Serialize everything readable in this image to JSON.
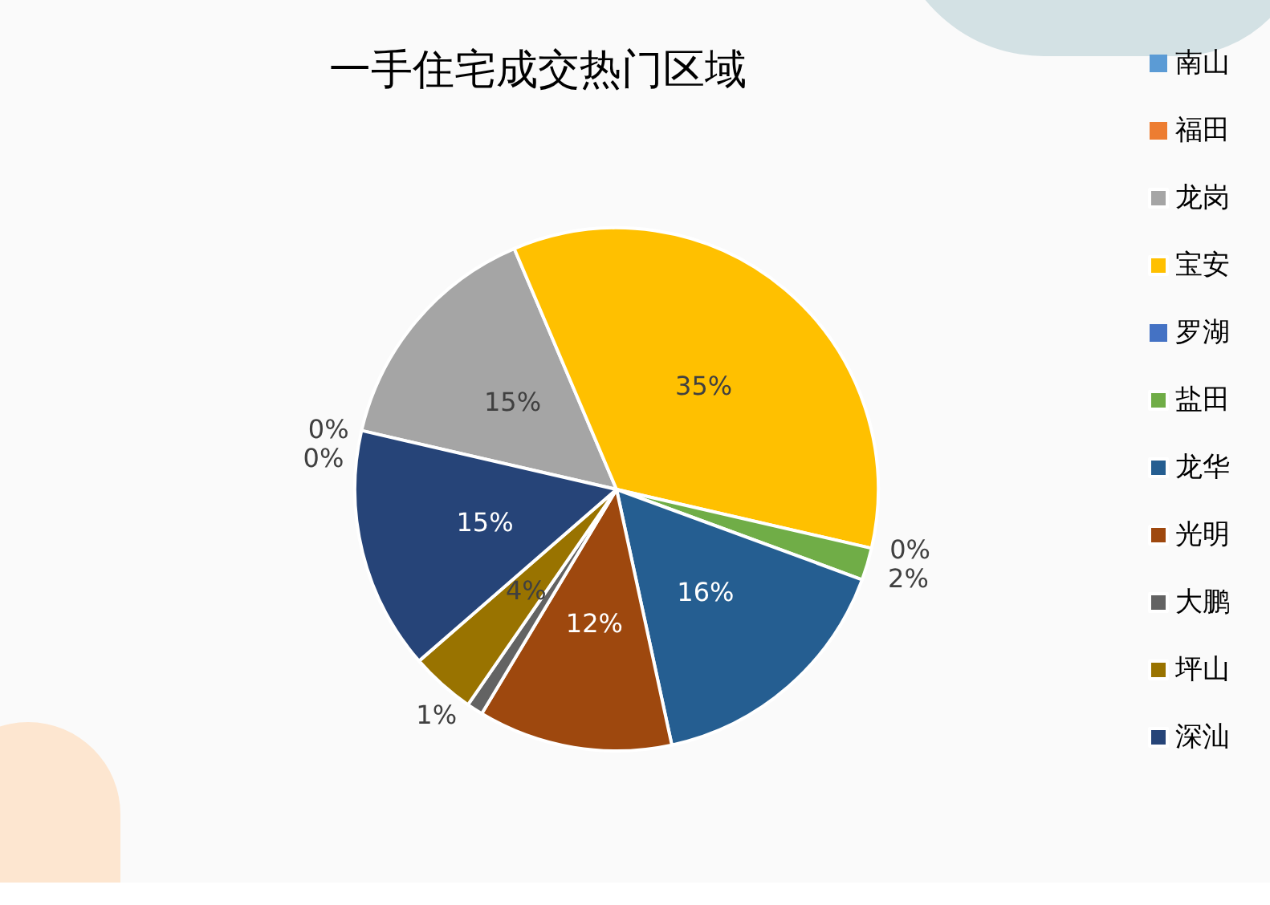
{
  "chart_data": {
    "type": "pie",
    "title": "一手住宅成交热门区域",
    "categories": [
      "南山",
      "福田",
      "龙岗",
      "宝安",
      "罗湖",
      "盐田",
      "龙华",
      "光明",
      "大鹏",
      "坪山",
      "深汕"
    ],
    "values": [
      0,
      0,
      15,
      35,
      0,
      2,
      16,
      12,
      1,
      4,
      15
    ],
    "value_labels": [
      "0%",
      "0%",
      "15%",
      "35%",
      "0%",
      "2%",
      "16%",
      "12%",
      "1%",
      "4%",
      "15%"
    ],
    "colors": [
      "#5b9bd5",
      "#ed7d31",
      "#a5a5a5",
      "#ffc000",
      "#4472c4",
      "#70ad47",
      "#255e91",
      "#9e480e",
      "#636363",
      "#997300",
      "#264478"
    ],
    "legend": "right"
  }
}
